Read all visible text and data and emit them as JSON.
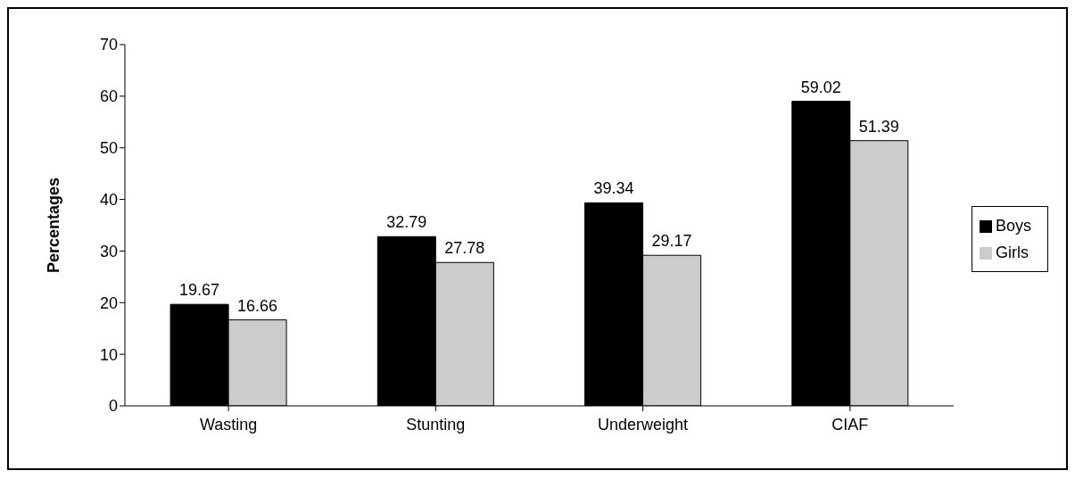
{
  "chart_data": {
    "type": "bar",
    "ylabel": "Percentages",
    "categories": [
      "Wasting",
      "Stunting",
      "Underweight",
      "CIAF"
    ],
    "series": [
      {
        "name": "Boys",
        "color": "#000000",
        "values": [
          19.67,
          32.79,
          39.34,
          59.02
        ]
      },
      {
        "name": "Girls",
        "color": "#cccccc",
        "values": [
          16.66,
          27.78,
          29.17,
          51.39
        ]
      }
    ],
    "ylim": [
      0,
      70
    ],
    "yticks": [
      0,
      10,
      20,
      30,
      40,
      50,
      60,
      70
    ],
    "grid": false,
    "legend": "right",
    "data_labels": true
  }
}
